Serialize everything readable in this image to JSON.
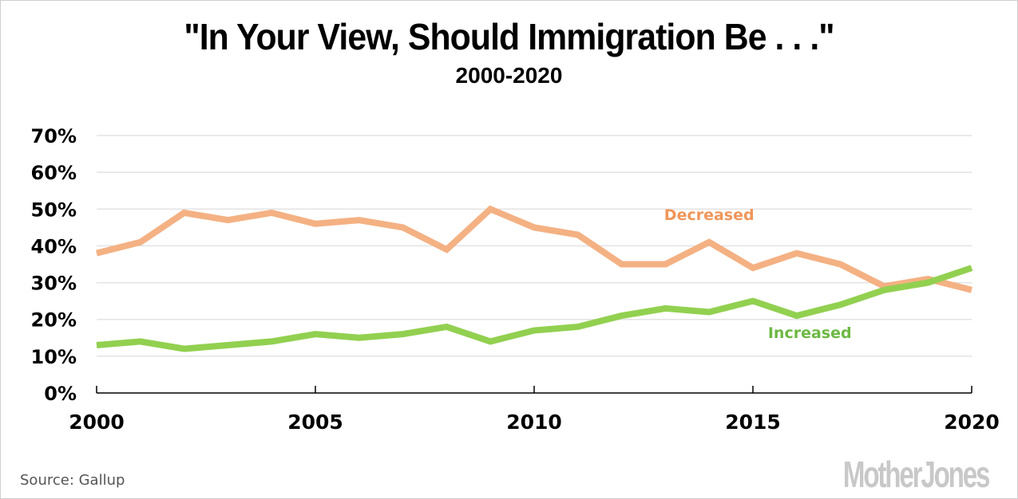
{
  "chart_data": {
    "type": "line",
    "title": "\"In Your View, Should Immigration Be . . .\"",
    "subtitle": "2000-2020",
    "xlabel": "",
    "ylabel": "",
    "x": [
      2000,
      2001,
      2002,
      2003,
      2004,
      2005,
      2006,
      2007,
      2008,
      2009,
      2010,
      2011,
      2012,
      2013,
      2014,
      2015,
      2016,
      2017,
      2018,
      2019,
      2020
    ],
    "xlim": [
      2000,
      2020
    ],
    "ylim": [
      0,
      70
    ],
    "x_ticks": [
      "2000",
      "2005",
      "2010",
      "2015",
      "2020"
    ],
    "x_tick_values": [
      2000,
      2005,
      2010,
      2015,
      2020
    ],
    "y_ticks": [
      "0%",
      "10%",
      "20%",
      "30%",
      "40%",
      "50%",
      "60%",
      "70%"
    ],
    "y_tick_values": [
      0,
      10,
      20,
      30,
      40,
      50,
      60,
      70
    ],
    "grid": "horizontal",
    "legend": "inline labels",
    "series": [
      {
        "name": "Decreased",
        "color": "#F4B183",
        "label_color": "#F0965A",
        "label_anchor": {
          "x": 2014,
          "y": 47
        },
        "values": [
          38,
          41,
          49,
          47,
          49,
          46,
          47,
          45,
          39,
          50,
          45,
          43,
          35,
          35,
          41,
          34,
          38,
          35,
          29,
          31,
          28
        ]
      },
      {
        "name": "Increased",
        "color": "#92D050",
        "label_color": "#6DB843",
        "label_anchor": {
          "x": 2016.3,
          "y": 15
        },
        "values": [
          13,
          14,
          12,
          13,
          14,
          16,
          15,
          16,
          18,
          14,
          17,
          18,
          21,
          23,
          22,
          25,
          21,
          24,
          28,
          30,
          34
        ]
      }
    ]
  },
  "footer": {
    "source": "Source:  Gallup",
    "brand": "MotherJones"
  }
}
